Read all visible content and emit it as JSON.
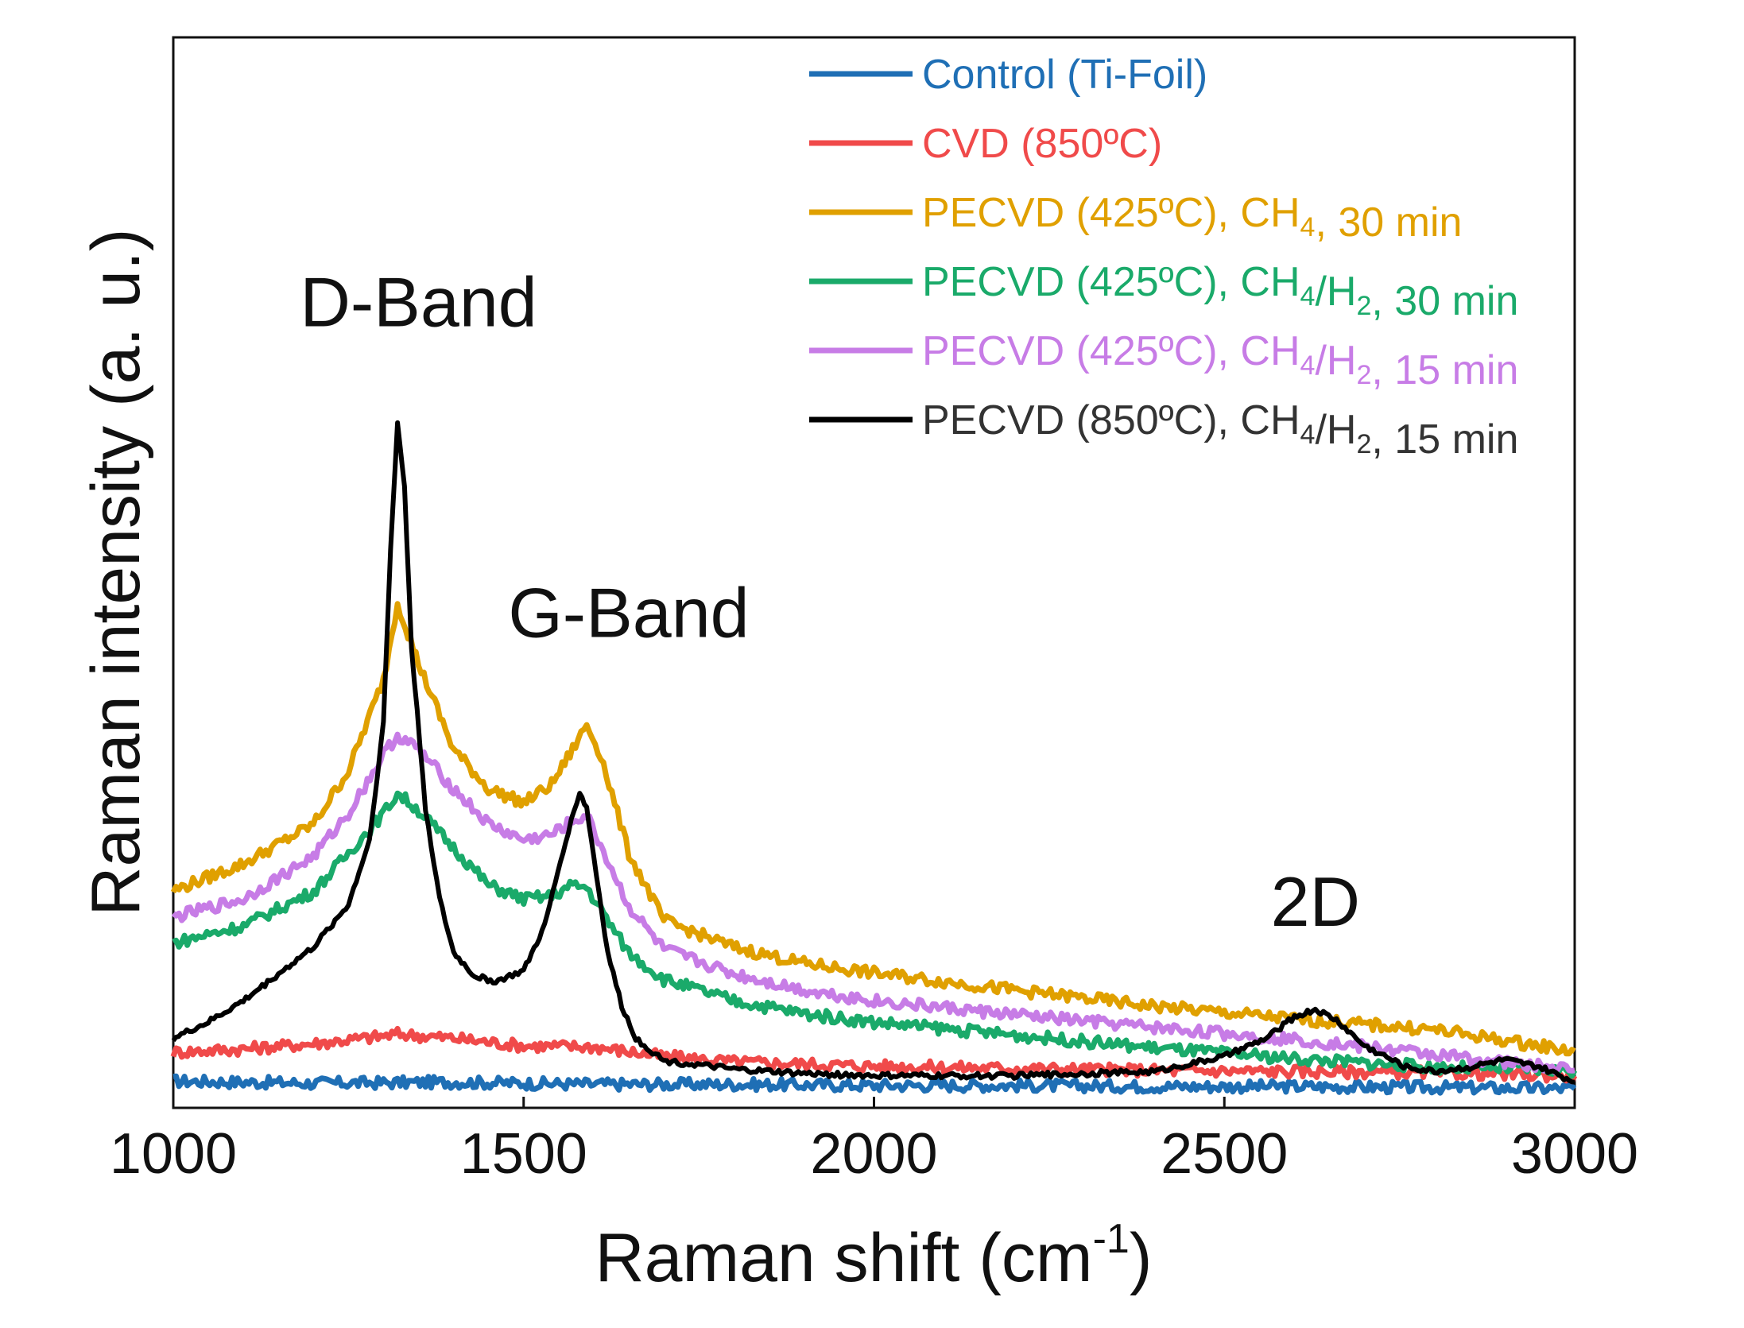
{
  "chart_data": {
    "type": "line",
    "xlabel": "Raman shift (cm",
    "xlabel_sup": "-1",
    "xlabel_tail": ")",
    "ylabel": "Raman intensity (a. u.)",
    "xlim": [
      1000,
      3000
    ],
    "ylim": [
      0,
      100
    ],
    "x_ticks": [
      1000,
      1500,
      2000,
      2500,
      3000
    ],
    "x_tick_labels": [
      "1000",
      "1500",
      "2000",
      "2500",
      "3000"
    ],
    "grid": false,
    "legend_position": "top-right",
    "annotations": [
      {
        "text": "D-Band",
        "x": 1350,
        "y": 73
      },
      {
        "text": "G-Band",
        "x": 1650,
        "y": 44
      },
      {
        "text": "2D",
        "x": 2630,
        "y": 17
      }
    ],
    "series": [
      {
        "name": "Control (Ti-Foil)",
        "legend": [
          {
            "t": "Control (Ti-Foil)"
          }
        ],
        "color": "#1f6fb5",
        "x": [
          1000,
          1200,
          1400,
          1600,
          1800,
          2000,
          2200,
          2400,
          2600,
          2800,
          3000
        ],
        "y": [
          2.5,
          2.3,
          2.4,
          2.2,
          2.2,
          2.1,
          2.1,
          2.0,
          2.0,
          1.9,
          1.8
        ]
      },
      {
        "name": "CVD (850°C)",
        "legend": [
          {
            "t": "CVD (850ºC)"
          }
        ],
        "color": "#f04a4a",
        "x": [
          1000,
          1100,
          1200,
          1300,
          1320,
          1400,
          1500,
          1600,
          1700,
          1800,
          2000,
          2200,
          2400,
          2600,
          2800,
          3000
        ],
        "y": [
          5.2,
          5.5,
          6.0,
          6.7,
          6.9,
          6.5,
          5.8,
          5.7,
          4.8,
          4.3,
          3.9,
          3.7,
          3.5,
          3.4,
          3.3,
          3.0
        ]
      },
      {
        "name": "PECVD (425°C), CH4, 30 min",
        "legend": [
          {
            "t": "PECVD (425ºC), CH"
          },
          {
            "t": "4",
            "sub": true
          },
          {
            "t": ", 30 min"
          }
        ],
        "color": "#e0a000",
        "x": [
          1000,
          1100,
          1200,
          1250,
          1300,
          1320,
          1350,
          1400,
          1450,
          1500,
          1540,
          1570,
          1590,
          1610,
          1650,
          1700,
          1800,
          1900,
          2000,
          2200,
          2400,
          2600,
          2800,
          3000
        ],
        "y": [
          20.3,
          22.8,
          26.5,
          31.5,
          40.0,
          47.2,
          41.5,
          33.5,
          29.8,
          28.5,
          30.2,
          33.5,
          35.8,
          33.0,
          23.8,
          17.5,
          15.0,
          13.5,
          12.6,
          11.0,
          9.5,
          8.3,
          7.3,
          5.3
        ]
      },
      {
        "name": "PECVD (425°C), CH4/H2, 30 min",
        "legend": [
          {
            "t": "PECVD (425ºC), CH"
          },
          {
            "t": "4",
            "sub": true
          },
          {
            "t": "/H"
          },
          {
            "t": "2",
            "sub": true
          },
          {
            "t": ", 30 min"
          }
        ],
        "color": "#1aaa6a",
        "x": [
          1000,
          1100,
          1200,
          1250,
          1300,
          1320,
          1350,
          1400,
          1450,
          1500,
          1540,
          1570,
          1590,
          1610,
          1650,
          1700,
          1800,
          1900,
          2000,
          2200,
          2400,
          2600,
          2800,
          3000
        ],
        "y": [
          15.4,
          17.0,
          20.2,
          23.8,
          27.5,
          29.4,
          27.8,
          24.3,
          20.8,
          19.5,
          19.8,
          20.8,
          20.6,
          18.5,
          14.5,
          12.0,
          10.0,
          8.8,
          8.0,
          6.8,
          5.6,
          4.6,
          3.8,
          3.5
        ]
      },
      {
        "name": "PECVD (425°C), CH4/H2, 15 min",
        "legend": [
          {
            "t": "PECVD (425ºC), CH"
          },
          {
            "t": "4",
            "sub": true
          },
          {
            "t": "/H"
          },
          {
            "t": "2",
            "sub": true
          },
          {
            "t": ", 15 min"
          }
        ],
        "color": "#c77ce6",
        "x": [
          1000,
          1100,
          1200,
          1250,
          1300,
          1320,
          1350,
          1400,
          1450,
          1500,
          1540,
          1570,
          1590,
          1610,
          1650,
          1700,
          1800,
          1900,
          2000,
          2200,
          2400,
          2600,
          2800,
          3000
        ],
        "y": [
          17.8,
          19.5,
          23.5,
          27.5,
          33.0,
          34.8,
          33.5,
          29.8,
          26.5,
          25.0,
          25.5,
          26.8,
          27.3,
          24.5,
          18.8,
          14.8,
          12.5,
          11.0,
          10.0,
          8.7,
          7.5,
          6.4,
          5.0,
          3.5
        ]
      },
      {
        "name": "PECVD (850°C), CH4/H2, 15 min",
        "legend": [
          {
            "t": "PECVD (850ºC), CH"
          },
          {
            "t": "4",
            "sub": true
          },
          {
            "t": "/H"
          },
          {
            "t": "2",
            "sub": true
          },
          {
            "t": ", 15 min"
          }
        ],
        "color": "#000000",
        "x": [
          1000,
          1050,
          1100,
          1150,
          1200,
          1250,
          1280,
          1300,
          1310,
          1320,
          1330,
          1340,
          1360,
          1380,
          1400,
          1430,
          1460,
          1500,
          1530,
          1560,
          1580,
          1590,
          1600,
          1620,
          1640,
          1660,
          1700,
          1800,
          1900,
          2000,
          2200,
          2400,
          2500,
          2560,
          2600,
          2630,
          2660,
          2700,
          2760,
          2800,
          2850,
          2900,
          2950,
          3000
        ],
        "y": [
          6.5,
          8.0,
          10.0,
          12.5,
          15.0,
          19.0,
          25.0,
          36.0,
          52.0,
          64.0,
          58.0,
          43.0,
          28.0,
          19.5,
          14.5,
          12.3,
          11.8,
          12.8,
          17.0,
          25.0,
          29.5,
          28.0,
          23.5,
          14.5,
          9.5,
          6.5,
          4.4,
          3.6,
          3.2,
          3.0,
          3.0,
          3.4,
          4.8,
          6.5,
          8.5,
          9.2,
          8.2,
          5.8,
          3.8,
          3.4,
          3.8,
          4.5,
          3.8,
          2.4
        ]
      }
    ]
  }
}
